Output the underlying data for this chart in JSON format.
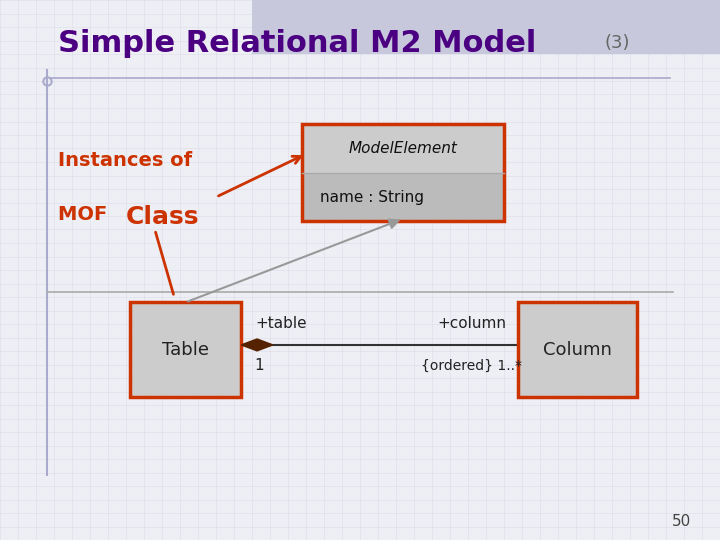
{
  "title": "Simple Relational M2 Model",
  "title_color": "#4B0082",
  "title_suffix": "(3)",
  "title_suffix_color": "#666666",
  "bg_color": "#eeeef5",
  "grid_color": "#d0d0e0",
  "instances_label": "Instances of",
  "mof_label": "MOF ",
  "class_label": "Class",
  "label_color": "#cc3300",
  "box_fill": "#cccccc",
  "box_edge": "#cc3300",
  "modelelement_title": "ModelElement",
  "modelelement_attr": "name : String",
  "table_label": "Table",
  "column_label": "Column",
  "table_assoc": "+table",
  "table_mult": "1",
  "column_assoc": "+column",
  "column_mult": "{ordered} 1..*",
  "page_num": "50",
  "arrow_color": "#cc3300",
  "line_color": "#999999",
  "diamond_color": "#552200",
  "top_bar_color": "#c8c8dc",
  "title_underline_color": "#aaaacc",
  "left_bar_color": "#aaaacc"
}
